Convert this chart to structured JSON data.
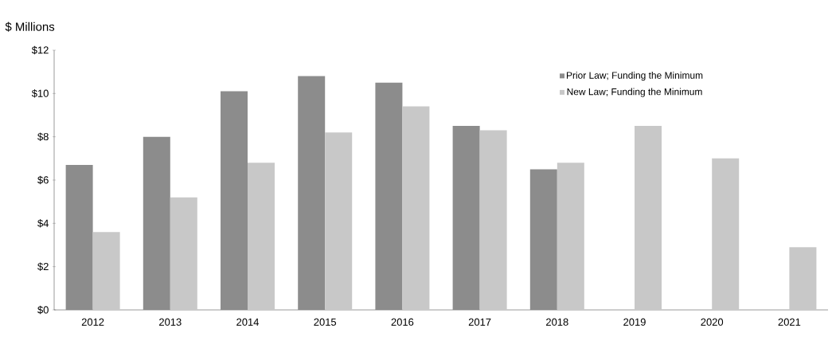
{
  "chart_data": {
    "type": "bar",
    "ylabel": "$ Millions",
    "categories": [
      "2012",
      "2013",
      "2014",
      "2015",
      "2016",
      "2017",
      "2018",
      "2019",
      "2020",
      "2021"
    ],
    "series": [
      {
        "name": "Prior Law; Funding the Minimum",
        "color": "#8c8c8c",
        "values": [
          6.7,
          8.0,
          10.1,
          10.8,
          10.5,
          8.5,
          6.5,
          null,
          null,
          null
        ]
      },
      {
        "name": "New Law; Funding the Minimum",
        "color": "#c8c8c8",
        "values": [
          3.6,
          5.2,
          6.8,
          8.2,
          9.4,
          8.3,
          6.8,
          8.5,
          7.0,
          2.9
        ]
      }
    ],
    "ylim": [
      0,
      12
    ],
    "yticks": [
      {
        "value": 0,
        "label": "$0"
      },
      {
        "value": 2,
        "label": "$2"
      },
      {
        "value": 4,
        "label": "$4"
      },
      {
        "value": 6,
        "label": "$6"
      },
      {
        "value": 8,
        "label": "$8"
      },
      {
        "value": 10,
        "label": "$10"
      },
      {
        "value": 12,
        "label": "$12"
      }
    ],
    "legend": "top right"
  }
}
